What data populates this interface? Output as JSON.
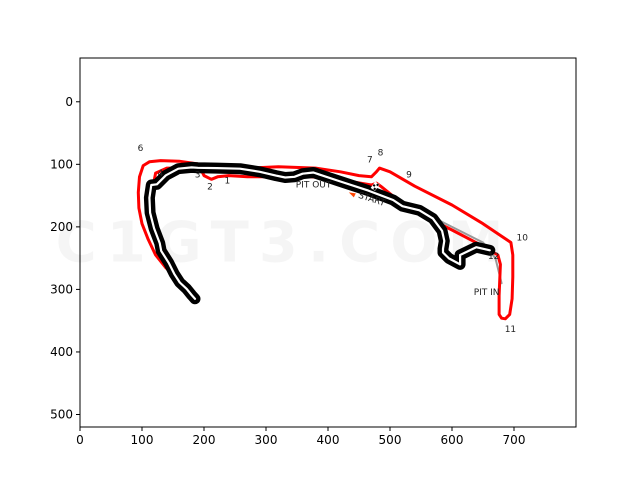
{
  "chart_data": {
    "type": "line",
    "title": "",
    "xlabel": "",
    "ylabel": "",
    "xlim": [
      0,
      800
    ],
    "ylim": [
      520,
      -70
    ],
    "y_inverted": true,
    "xticks": [
      0,
      100,
      200,
      300,
      400,
      500,
      600,
      700
    ],
    "yticks": [
      0,
      100,
      200,
      300,
      400,
      500
    ],
    "grid": false,
    "watermark": "C1GT3.COM",
    "series": [
      {
        "role": "track-outline",
        "color": "#ff0000",
        "x": [
          185,
          178,
          160,
          138,
          122,
          110,
          100,
          95,
          94,
          96,
          102,
          112,
          130,
          160,
          195,
          220,
          240,
          270,
          320,
          380,
          420,
          450,
          470,
          478,
          483,
          500,
          540,
          600,
          650,
          680,
          695,
          698,
          698,
          697,
          693,
          686,
          680,
          676,
          676,
          678,
          674,
          648,
          600,
          550,
          510,
          485,
          478,
          470,
          440,
          400,
          360,
          330,
          300,
          270,
          240,
          222,
          212,
          200,
          196,
          172,
          140,
          122,
          117,
          118,
          122,
          130,
          145,
          162,
          176,
          182,
          184,
          182,
          186
        ],
        "y": [
          310,
          302,
          285,
          265,
          245,
          220,
          195,
          170,
          145,
          120,
          102,
          96,
          94,
          95,
          100,
          104,
          105,
          106,
          104,
          106,
          112,
          118,
          120,
          112,
          106,
          112,
          135,
          165,
          195,
          215,
          225,
          245,
          280,
          315,
          340,
          347,
          346,
          340,
          310,
          260,
          245,
          230,
          205,
          180,
          155,
          135,
          130,
          133,
          128,
          122,
          119,
          119,
          120,
          120,
          118,
          120,
          124,
          118,
          110,
          106,
          106,
          114,
          140,
          170,
          205,
          235,
          260,
          282,
          295,
          305,
          313,
          316,
          320
        ]
      },
      {
        "role": "pit-lane",
        "color": "#999999",
        "x": [
          478,
          510,
          560,
          610,
          650,
          670,
          680
        ],
        "y": [
          142,
          155,
          180,
          205,
          225,
          250,
          290
        ]
      }
    ],
    "annotations": {
      "corners": [
        {
          "label": "1",
          "x": 233,
          "y": 131
        },
        {
          "label": "2",
          "x": 205,
          "y": 140
        },
        {
          "label": "3",
          "x": 185,
          "y": 121
        },
        {
          "label": "4",
          "x": 125,
          "y": 119
        },
        {
          "label": "6",
          "x": 93,
          "y": 79
        },
        {
          "label": "7",
          "x": 463,
          "y": 97
        },
        {
          "label": "8",
          "x": 480,
          "y": 86
        },
        {
          "label": "9",
          "x": 526,
          "y": 121
        },
        {
          "label": "10",
          "x": 704,
          "y": 222
        },
        {
          "label": "11",
          "x": 685,
          "y": 368
        },
        {
          "label": "12",
          "x": 658,
          "y": 251
        },
        {
          "label": "PIT OUT",
          "x": 348,
          "y": 137
        },
        {
          "label": "PIT IN",
          "x": 635,
          "y": 309
        }
      ],
      "start_label": {
        "text": "START",
        "x": 448,
        "y": 153
      },
      "start_marker_color": "#ff4400",
      "start_flag": {
        "x": 476,
        "y": 135
      }
    }
  }
}
